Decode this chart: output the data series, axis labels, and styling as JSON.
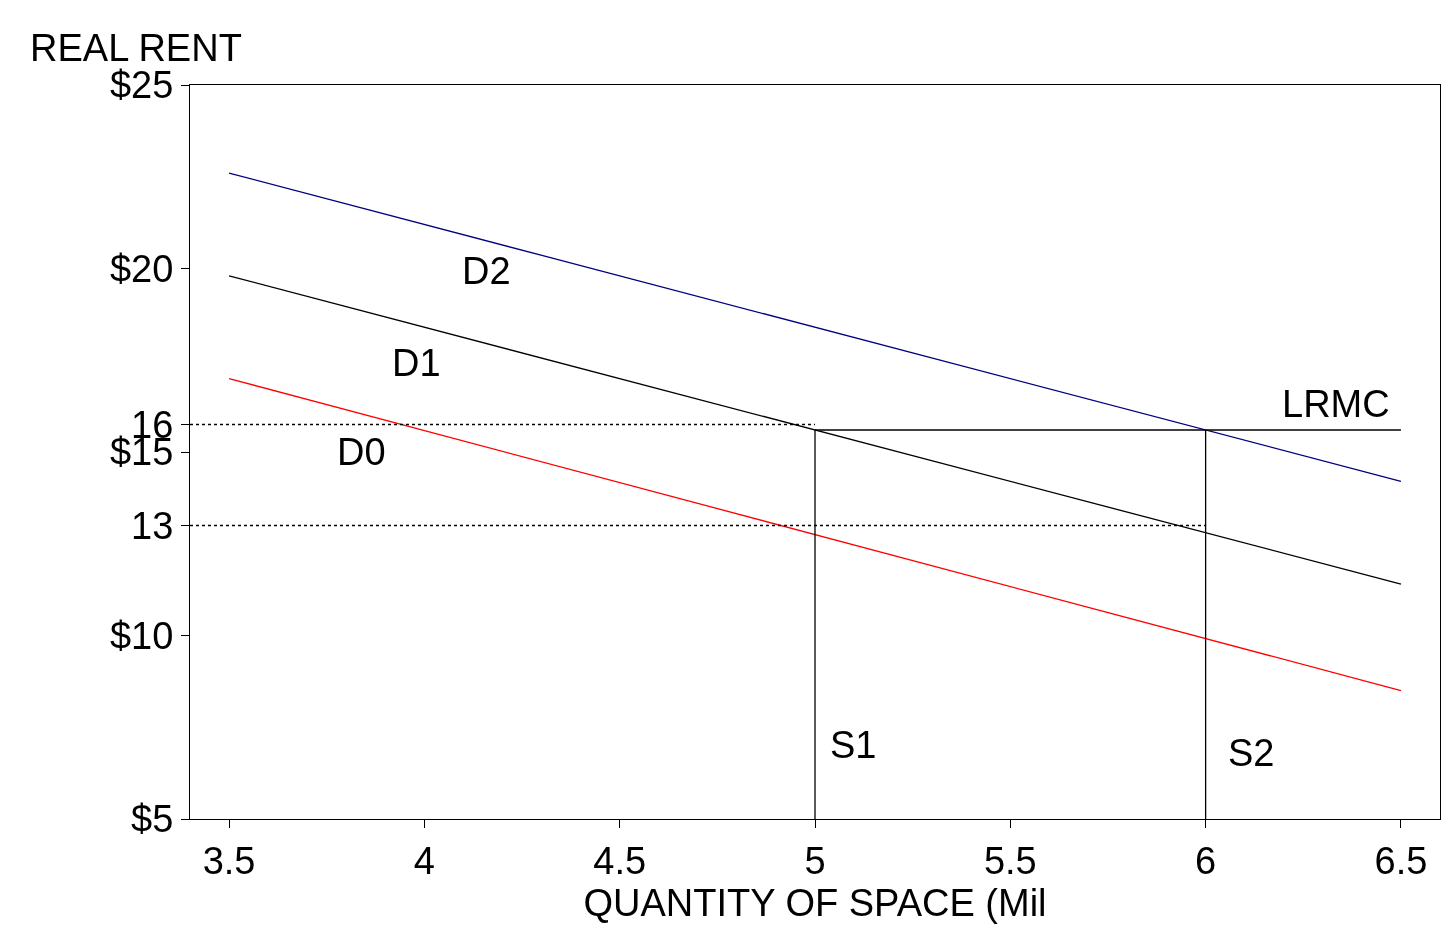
{
  "chart_data": {
    "type": "line",
    "xlabel": "QUANTITY OF SPACE (Mil",
    "ylabel": "REAL RENT",
    "xlim": [
      3.4,
      6.6
    ],
    "xticks": [
      3.5,
      4,
      4.5,
      5,
      5.5,
      6,
      6.5
    ],
    "ylim": [
      5,
      25
    ],
    "yticks": [
      {
        "value": 5,
        "label": "$5"
      },
      {
        "value": 10,
        "label": "$10"
      },
      {
        "value": 15,
        "label": "$15"
      },
      {
        "value": 20,
        "label": "$20"
      },
      {
        "value": 25,
        "label": "$25"
      },
      {
        "value": 13,
        "label": "13"
      },
      {
        "value": 15.75,
        "label": "16"
      }
    ],
    "legend": false,
    "marker": "none",
    "series": [
      {
        "name": "D2",
        "color": "#000080",
        "x": [
          3.5,
          6.5
        ],
        "values": [
          22.6,
          14.2
        ],
        "line_style": "solid"
      },
      {
        "name": "D1",
        "color": "#000000",
        "x": [
          3.5,
          6.5
        ],
        "values": [
          19.8,
          11.4
        ],
        "line_style": "solid"
      },
      {
        "name": "D0",
        "color": "#ff0000",
        "x": [
          3.5,
          6.5
        ],
        "values": [
          17.0,
          8.5
        ],
        "line_style": "solid"
      },
      {
        "name": "LRMC",
        "color": "#000000",
        "x": [
          5,
          6.5
        ],
        "values": [
          15.6,
          15.6
        ],
        "line_style": "solid"
      },
      {
        "name": "S1",
        "color": "#000000",
        "x": [
          5,
          5
        ],
        "values": [
          5,
          15.6
        ],
        "line_style": "solid"
      },
      {
        "name": "S2",
        "color": "#000000",
        "x": [
          6,
          6
        ],
        "values": [
          5,
          15.6
        ],
        "line_style": "solid"
      },
      {
        "color": "#000000",
        "x": [
          3.4,
          5
        ],
        "values": [
          15.75,
          15.75
        ],
        "line_style": "dotted"
      },
      {
        "color": "#000000",
        "x": [
          3.4,
          6
        ],
        "values": [
          13,
          13
        ],
        "line_style": "dotted"
      }
    ]
  }
}
